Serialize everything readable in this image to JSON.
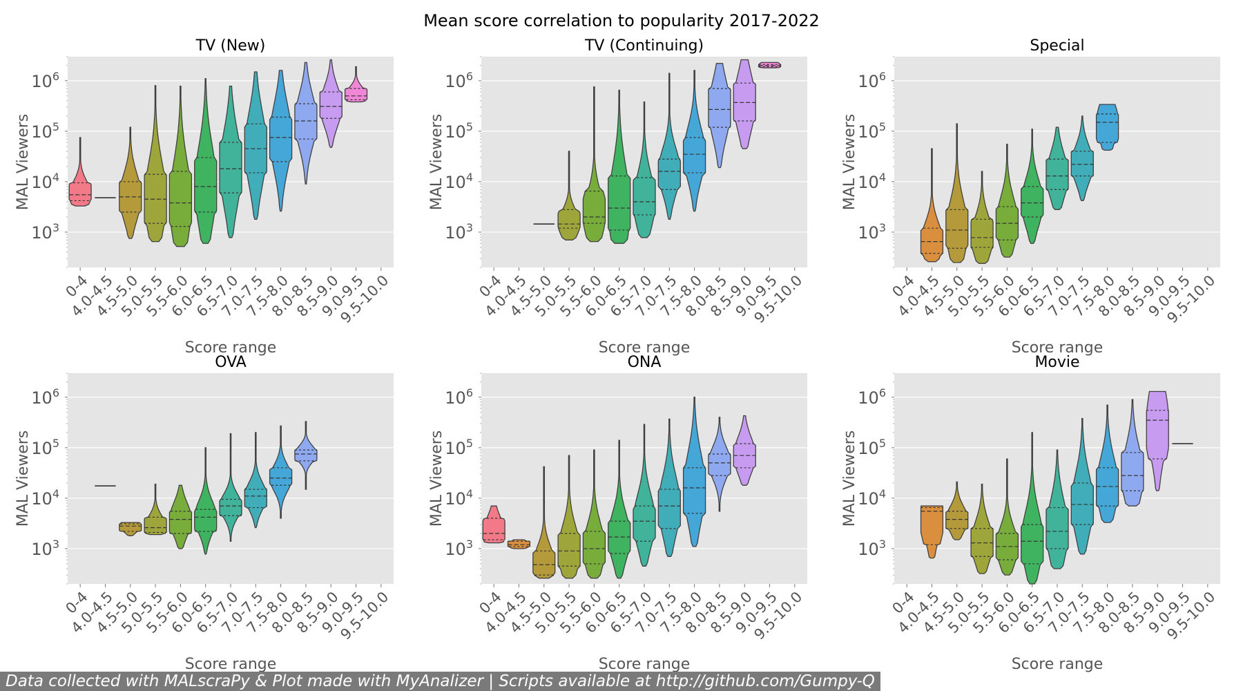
{
  "figure": {
    "title": "Mean score correlation to popularity 2017-2022",
    "credit": "Data collected with MALscraPy & Plot made with MyAnalizer | Scripts available at http://github.com/Gumpy-Q"
  },
  "colors": {
    "panel_bg": "#e5e5e5",
    "grid": "#ffffff",
    "axis_text": "#555555",
    "title_text": "#000000",
    "credit_bg": "#7a7a7a",
    "palette": [
      "#f27987",
      "#d98f3e",
      "#b59a3c",
      "#9ea53a",
      "#78ad3c",
      "#3fb35f",
      "#40b39a",
      "#41adb8",
      "#45a6d8",
      "#8fa9f0",
      "#c79bf0",
      "#ef86d6"
    ]
  },
  "chart_data": [
    {
      "type": "violin",
      "title": "TV (New)",
      "xlabel": "Score range",
      "ylabel": "MAL Viewers",
      "yscale": "log",
      "ylim": [
        200,
        3000000
      ],
      "grid": true,
      "categories": [
        "0-4",
        "4.0-4.5",
        "4.5-5.0",
        "5.0-5.5",
        "5.5-6.0",
        "6.0-6.5",
        "6.5-7.0",
        "7.0-7.5",
        "7.5-8.0",
        "8.0-8.5",
        "8.5-9.0",
        "9.0-9.5",
        "9.5-10.0"
      ],
      "values": [
        {
          "min": 3300,
          "q1": 4200,
          "median": 5500,
          "q3": 9500,
          "max": 75000
        },
        {
          "min": 4600,
          "q1": 4700,
          "median": 4800,
          "q3": 4900,
          "max": 5000
        },
        {
          "min": 750,
          "q1": 2500,
          "median": 5000,
          "q3": 10000,
          "max": 120000
        },
        {
          "min": 650,
          "q1": 1500,
          "median": 4500,
          "q3": 14000,
          "max": 800000
        },
        {
          "min": 520,
          "q1": 1300,
          "median": 3800,
          "q3": 16000,
          "max": 780000
        },
        {
          "min": 600,
          "q1": 2500,
          "median": 8000,
          "q3": 30000,
          "max": 1100000
        },
        {
          "min": 780,
          "q1": 6000,
          "median": 18000,
          "q3": 60000,
          "max": 780000
        },
        {
          "min": 1800,
          "q1": 15000,
          "median": 45000,
          "q3": 140000,
          "max": 1500000
        },
        {
          "min": 2600,
          "q1": 25000,
          "median": 75000,
          "q3": 190000,
          "max": 1600000
        },
        {
          "min": 9000,
          "q1": 70000,
          "median": 160000,
          "q3": 350000,
          "max": 2300000
        },
        {
          "min": 48000,
          "q1": 180000,
          "median": 310000,
          "q3": 600000,
          "max": 2600000
        },
        {
          "min": 380000,
          "q1": 420000,
          "median": 500000,
          "q3": 700000,
          "max": 1900000
        },
        null
      ]
    },
    {
      "type": "violin",
      "title": "TV (Continuing)",
      "xlabel": "Score range",
      "ylabel": "MAL Viewers",
      "yscale": "log",
      "ylim": [
        200,
        3000000
      ],
      "grid": true,
      "categories": [
        "0-4",
        "4.0-4.5",
        "4.5-5.0",
        "5.0-5.5",
        "5.5-6.0",
        "6.0-6.5",
        "6.5-7.0",
        "7.0-7.5",
        "7.5-8.0",
        "8.0-8.5",
        "8.5-9.0",
        "9.0-9.5",
        "9.5-10.0"
      ],
      "values": [
        null,
        null,
        {
          "min": 1400,
          "q1": 1420,
          "median": 1450,
          "q3": 1480,
          "max": 1500
        },
        {
          "min": 700,
          "q1": 1200,
          "median": 1450,
          "q3": 2800,
          "max": 40000
        },
        {
          "min": 650,
          "q1": 1500,
          "median": 2000,
          "q3": 6500,
          "max": 760000
        },
        {
          "min": 600,
          "q1": 1100,
          "median": 3000,
          "q3": 13000,
          "max": 650000
        },
        {
          "min": 780,
          "q1": 2200,
          "median": 4000,
          "q3": 12000,
          "max": 380000
        },
        {
          "min": 1800,
          "q1": 7000,
          "median": 16000,
          "q3": 28000,
          "max": 1400000
        },
        {
          "min": 2600,
          "q1": 15000,
          "median": 35000,
          "q3": 75000,
          "max": 1600000
        },
        {
          "min": 19000,
          "q1": 120000,
          "median": 270000,
          "q3": 700000,
          "max": 2200000
        },
        {
          "min": 45000,
          "q1": 160000,
          "median": 370000,
          "q3": 900000,
          "max": 2600000
        },
        {
          "min": 1800000,
          "q1": 1900000,
          "median": 2000000,
          "q3": 2100000,
          "max": 2300000
        },
        null
      ]
    },
    {
      "type": "violin",
      "title": "Special",
      "xlabel": "Score range",
      "ylabel": "MAL Viewers",
      "yscale": "log",
      "ylim": [
        200,
        3000000
      ],
      "grid": true,
      "categories": [
        "0-4",
        "4.0-4.5",
        "4.5-5.0",
        "5.0-5.5",
        "5.5-6.0",
        "6.0-6.5",
        "6.5-7.0",
        "7.0-7.5",
        "7.5-8.0",
        "8.0-8.5",
        "8.5-9.0",
        "9.0-9.5",
        "9.5-10.0"
      ],
      "values": [
        null,
        {
          "min": 260,
          "q1": 380,
          "median": 650,
          "q3": 1200,
          "max": 45000
        },
        {
          "min": 250,
          "q1": 480,
          "median": 1100,
          "q3": 2800,
          "max": 140000
        },
        {
          "min": 240,
          "q1": 500,
          "median": 780,
          "q3": 1800,
          "max": 16000
        },
        {
          "min": 320,
          "q1": 700,
          "median": 1500,
          "q3": 3200,
          "max": 55000
        },
        {
          "min": 600,
          "q1": 2000,
          "median": 3800,
          "q3": 8000,
          "max": 110000
        },
        {
          "min": 2800,
          "q1": 7000,
          "median": 13000,
          "q3": 28000,
          "max": 120000
        },
        {
          "min": 4200,
          "q1": 13000,
          "median": 22000,
          "q3": 40000,
          "max": 200000
        },
        {
          "min": 42000,
          "q1": 60000,
          "median": 150000,
          "q3": 220000,
          "max": 340000
        },
        null,
        null,
        null,
        null
      ]
    },
    {
      "type": "violin",
      "title": "OVA",
      "xlabel": "Score range",
      "ylabel": "MAL Viewers",
      "yscale": "log",
      "ylim": [
        200,
        3000000
      ],
      "grid": true,
      "categories": [
        "0-4",
        "4.0-4.5",
        "4.5-5.0",
        "5.0-5.5",
        "5.5-6.0",
        "6.0-6.5",
        "6.5-7.0",
        "7.0-7.5",
        "7.5-8.0",
        "8.0-8.5",
        "8.5-9.0",
        "9.0-9.5",
        "9.5-10.0"
      ],
      "values": [
        null,
        {
          "min": 17000,
          "q1": 17200,
          "median": 17500,
          "q3": 17800,
          "max": 18000
        },
        {
          "min": 1800,
          "q1": 2200,
          "median": 2800,
          "q3": 3100,
          "max": 3300
        },
        {
          "min": 1900,
          "q1": 2100,
          "median": 2600,
          "q3": 4200,
          "max": 19000
        },
        {
          "min": 1000,
          "q1": 2000,
          "median": 3800,
          "q3": 5500,
          "max": 18000
        },
        {
          "min": 780,
          "q1": 2200,
          "median": 4200,
          "q3": 6000,
          "max": 100000
        },
        {
          "min": 1400,
          "q1": 4500,
          "median": 7000,
          "q3": 9500,
          "max": 190000
        },
        {
          "min": 2600,
          "q1": 6500,
          "median": 11000,
          "q3": 15000,
          "max": 200000
        },
        {
          "min": 4000,
          "q1": 18000,
          "median": 25000,
          "q3": 40000,
          "max": 270000
        },
        {
          "min": 15000,
          "q1": 55000,
          "median": 75000,
          "q3": 90000,
          "max": 330000
        },
        null,
        null,
        null
      ]
    },
    {
      "type": "violin",
      "title": "ONA",
      "xlabel": "Score range",
      "ylabel": "MAL Viewers",
      "yscale": "log",
      "ylim": [
        200,
        3000000
      ],
      "grid": true,
      "categories": [
        "0-4",
        "4.0-4.5",
        "4.5-5.0",
        "5.0-5.5",
        "5.5-6.0",
        "6.0-6.5",
        "6.5-7.0",
        "7.0-7.5",
        "7.5-8.0",
        "8.0-8.5",
        "8.5-9.0",
        "9.0-9.5",
        "9.5-10.0"
      ],
      "values": [
        {
          "min": 1300,
          "q1": 1500,
          "median": 2000,
          "q3": 4000,
          "max": 7000
        },
        {
          "min": 1000,
          "q1": 1100,
          "median": 1200,
          "q3": 1400,
          "max": 1500
        },
        {
          "min": 260,
          "q1": 300,
          "median": 480,
          "q3": 900,
          "max": 42000
        },
        {
          "min": 260,
          "q1": 450,
          "median": 900,
          "q3": 2000,
          "max": 70000
        },
        {
          "min": 260,
          "q1": 500,
          "median": 1000,
          "q3": 2200,
          "max": 90000
        },
        {
          "min": 260,
          "q1": 800,
          "median": 1700,
          "q3": 3500,
          "max": 140000
        },
        {
          "min": 450,
          "q1": 1400,
          "median": 3500,
          "q3": 7000,
          "max": 290000
        },
        {
          "min": 700,
          "q1": 2500,
          "median": 7000,
          "q3": 15000,
          "max": 370000
        },
        {
          "min": 1100,
          "q1": 5000,
          "median": 16000,
          "q3": 40000,
          "max": 1000000
        },
        {
          "min": 5500,
          "q1": 28000,
          "median": 50000,
          "q3": 75000,
          "max": 400000
        },
        {
          "min": 18000,
          "q1": 40000,
          "median": 70000,
          "q3": 120000,
          "max": 430000
        },
        null,
        null
      ]
    },
    {
      "type": "violin",
      "title": "Movie",
      "xlabel": "Score range",
      "ylabel": "MAL Viewers",
      "yscale": "log",
      "ylim": [
        200,
        3000000
      ],
      "grid": true,
      "categories": [
        "0-4",
        "4.0-4.5",
        "4.5-5.0",
        "5.0-5.5",
        "5.5-6.0",
        "6.0-6.5",
        "6.5-7.0",
        "7.0-7.5",
        "7.5-8.0",
        "8.0-8.5",
        "8.5-9.0",
        "9.0-9.5",
        "9.5-10.0"
      ],
      "values": [
        null,
        {
          "min": 650,
          "q1": 1200,
          "median": 5500,
          "q3": 6500,
          "max": 7000
        },
        {
          "min": 1500,
          "q1": 2500,
          "median": 3800,
          "q3": 5500,
          "max": 21000
        },
        {
          "min": 320,
          "q1": 700,
          "median": 1300,
          "q3": 2500,
          "max": 19000
        },
        {
          "min": 300,
          "q1": 600,
          "median": 1100,
          "q3": 2000,
          "max": 60000
        },
        {
          "min": 200,
          "q1": 500,
          "median": 1400,
          "q3": 3000,
          "max": 200000
        },
        {
          "min": 400,
          "q1": 1000,
          "median": 2200,
          "q3": 6500,
          "max": 90000
        },
        {
          "min": 780,
          "q1": 3000,
          "median": 7500,
          "q3": 20000,
          "max": 380000
        },
        {
          "min": 3300,
          "q1": 7000,
          "median": 17000,
          "q3": 40000,
          "max": 700000
        },
        {
          "min": 7000,
          "q1": 14000,
          "median": 28000,
          "q3": 80000,
          "max": 900000
        },
        {
          "min": 14000,
          "q1": 60000,
          "median": 350000,
          "q3": 550000,
          "max": 1300000
        },
        {
          "min": 120000,
          "q1": 120000,
          "median": 120000,
          "q3": 120000,
          "max": 120000
        },
        null
      ]
    }
  ]
}
